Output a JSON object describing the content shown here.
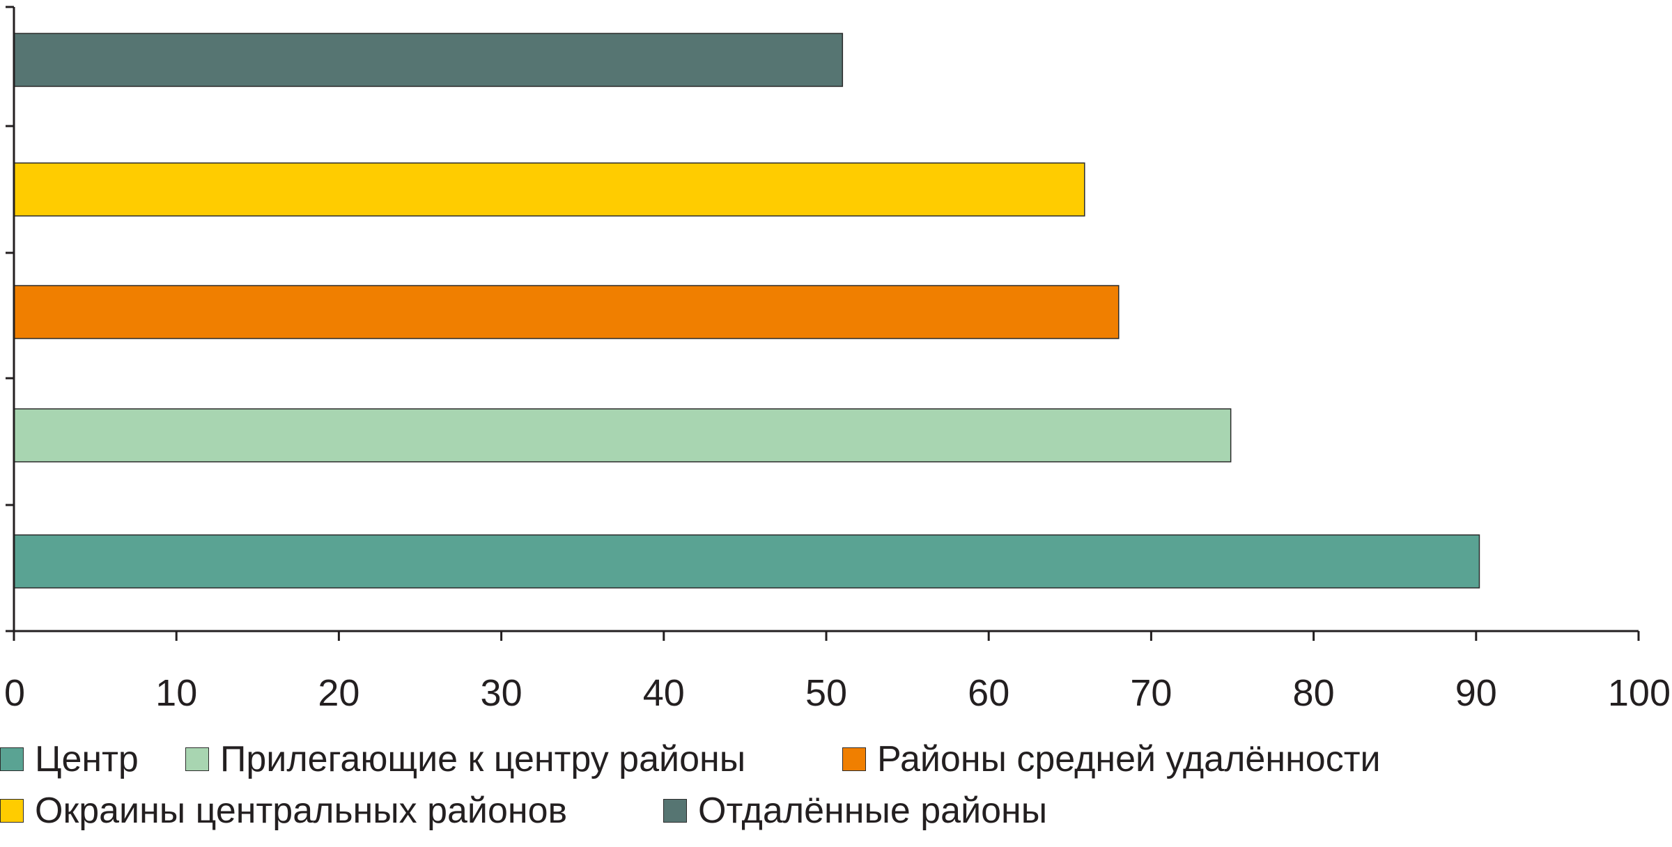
{
  "chart_data": {
    "type": "bar",
    "orientation": "horizontal",
    "title": "",
    "xlabel": "",
    "ylabel": "",
    "xlim": [
      0,
      100
    ],
    "x_ticks": [
      "0",
      "10",
      "20",
      "30",
      "40",
      "50",
      "60",
      "70",
      "80",
      "90",
      "100"
    ],
    "grid": false,
    "legend_position": "bottom",
    "series": [
      {
        "name": "Центр",
        "value": 90.2,
        "color": "#5aa393"
      },
      {
        "name": "Прилегающие к центру районы",
        "value": 74.9,
        "color": "#a8d5b1"
      },
      {
        "name": "Районы средней удалённости",
        "value": 68.0,
        "color": "#f07f00"
      },
      {
        "name": "Окраины центральных районов",
        "value": 65.9,
        "color": "#ffcc00"
      },
      {
        "name": "Отдалённые районы",
        "value": 51.0,
        "color": "#567572"
      }
    ]
  }
}
